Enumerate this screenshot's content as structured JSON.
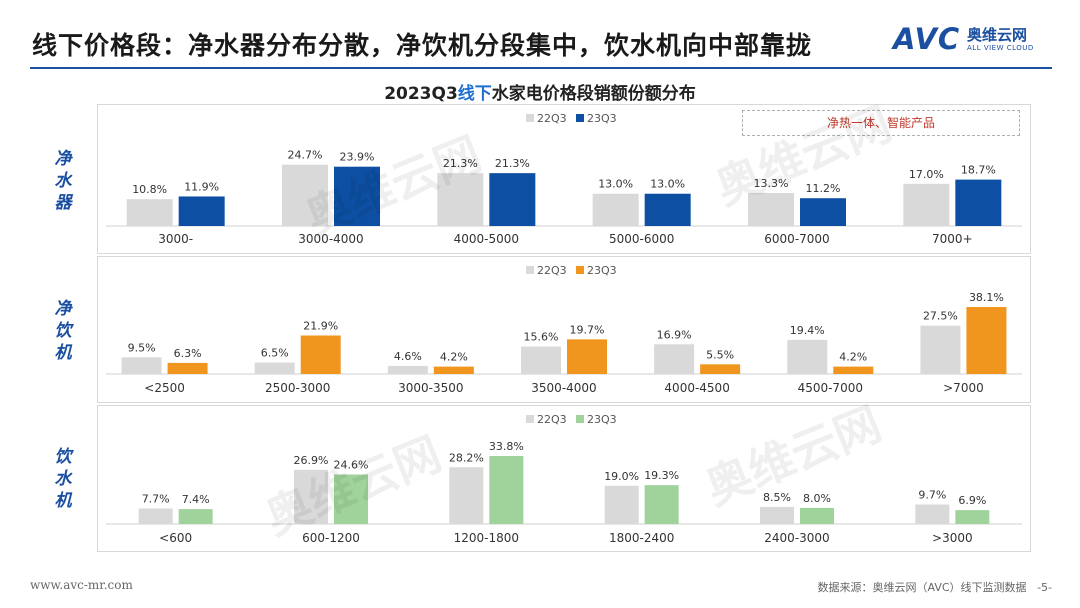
{
  "header": {
    "title": "线下价格段：净水器分布分散，净饮机分段集中，饮水机向中部靠拢"
  },
  "logo": {
    "avc": "AVC",
    "cn": "奥维云网",
    "en": "ALL VIEW CLOUD"
  },
  "watermark": {
    "text": "奥维云网",
    "en": "ALL VIEW CLOUD"
  },
  "chart_title": {
    "prefix": "2023Q3",
    "highlight": "线下",
    "suffix": "水家电价格段销额份额分布"
  },
  "annotation": "净热一体、智能产品",
  "colors": {
    "prev": "#d9d9d9",
    "purifier": "#0d4fa3",
    "drinking": "#f0961e",
    "dispenser": "#9fd39b",
    "brand": "#1b4fa0"
  },
  "chart_data": [
    {
      "type": "bar",
      "name": "净水器",
      "side_label": [
        "净",
        "水",
        "器"
      ],
      "legend": [
        "22Q3",
        "23Q3"
      ],
      "categories": [
        "3000-",
        "3000-4000",
        "4000-5000",
        "5000-6000",
        "6000-7000",
        "7000+"
      ],
      "series": [
        {
          "name": "22Q3",
          "values": [
            10.8,
            24.7,
            21.3,
            13.0,
            13.3,
            17.0
          ],
          "labels": [
            "10.8%",
            "24.7%",
            "21.3%",
            "13.0%",
            "13.3%",
            "17.0%"
          ]
        },
        {
          "name": "23Q3",
          "values": [
            11.9,
            23.9,
            21.3,
            13.0,
            11.2,
            18.7
          ],
          "labels": [
            "11.9%",
            "23.9%",
            "21.3%",
            "13.0%",
            "11.2%",
            "18.7%"
          ]
        }
      ],
      "ylim": [
        0,
        27
      ]
    },
    {
      "type": "bar",
      "name": "净饮机",
      "side_label": [
        "净",
        "饮",
        "机"
      ],
      "legend": [
        "22Q3",
        "23Q3"
      ],
      "categories": [
        "<2500",
        "2500-3000",
        "3000-3500",
        "3500-4000",
        "4000-4500",
        "4500-7000",
        ">7000"
      ],
      "series": [
        {
          "name": "22Q3",
          "values": [
            9.5,
            6.5,
            4.6,
            15.6,
            16.9,
            19.4,
            27.5
          ],
          "labels": [
            "9.5%",
            "6.5%",
            "4.6%",
            "15.6%",
            "16.9%",
            "19.4%",
            "27.5%"
          ]
        },
        {
          "name": "23Q3",
          "values": [
            6.3,
            21.9,
            4.2,
            19.7,
            5.5,
            4.2,
            38.1
          ],
          "labels": [
            "6.3%",
            "21.9%",
            "4.2%",
            "19.7%",
            "5.5%",
            "4.2%",
            "38.1%"
          ]
        }
      ],
      "ylim": [
        0,
        38.1
      ]
    },
    {
      "type": "bar",
      "name": "饮水机",
      "side_label": [
        "饮",
        "水",
        "机"
      ],
      "legend": [
        "22Q3",
        "23Q3"
      ],
      "categories": [
        "<600",
        "600-1200",
        "1200-1800",
        "1800-2400",
        "2400-3000",
        ">3000"
      ],
      "series": [
        {
          "name": "22Q3",
          "values": [
            7.7,
            26.9,
            28.2,
            19.0,
            8.5,
            9.7
          ],
          "labels": [
            "7.7%",
            "26.9%",
            "28.2%",
            "19.0%",
            "8.5%",
            "9.7%"
          ]
        },
        {
          "name": "23Q3",
          "values": [
            7.4,
            24.6,
            33.8,
            19.3,
            8.0,
            6.9
          ],
          "labels": [
            "7.4%",
            "24.6%",
            "33.8%",
            "19.3%",
            "8.0%",
            "6.9%"
          ]
        }
      ],
      "ylim": [
        0,
        33.8
      ]
    }
  ],
  "footer": {
    "url": "www.avc-mr.com",
    "source": "数据来源：奥维云网（AVC）线下监测数据",
    "page": "-5-"
  }
}
